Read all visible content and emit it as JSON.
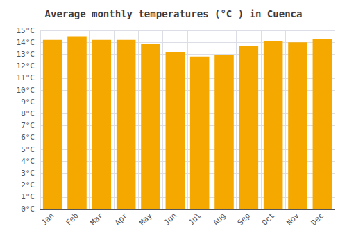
{
  "chart_data": {
    "type": "bar",
    "title": "Average monthly temperatures (°C ) in Cuenca",
    "categories": [
      "Jan",
      "Feb",
      "Mar",
      "Apr",
      "May",
      "Jun",
      "Jul",
      "Aug",
      "Sep",
      "Oct",
      "Nov",
      "Dec"
    ],
    "values": [
      14.2,
      14.5,
      14.2,
      14.2,
      13.9,
      13.2,
      12.8,
      12.9,
      13.7,
      14.1,
      14.0,
      14.3
    ],
    "color": "#F5A800",
    "ylim": [
      0,
      15
    ],
    "yticks": [
      {
        "value": 0,
        "label": "0°C"
      },
      {
        "value": 1,
        "label": "1°C"
      },
      {
        "value": 2,
        "label": "2°C"
      },
      {
        "value": 3,
        "label": "3°C"
      },
      {
        "value": 4,
        "label": "4°C"
      },
      {
        "value": 5,
        "label": "5°C"
      },
      {
        "value": 6,
        "label": "6°C"
      },
      {
        "value": 7,
        "label": "7°C"
      },
      {
        "value": 8,
        "label": "8°C"
      },
      {
        "value": 9,
        "label": "9°C"
      },
      {
        "value": 10,
        "label": "10°C"
      },
      {
        "value": 11,
        "label": "11°C"
      },
      {
        "value": 12,
        "label": "12°C"
      },
      {
        "value": 13,
        "label": "13°C"
      },
      {
        "value": 14,
        "label": "14°C"
      },
      {
        "value": 15,
        "label": "15°C"
      }
    ],
    "grid": true
  }
}
